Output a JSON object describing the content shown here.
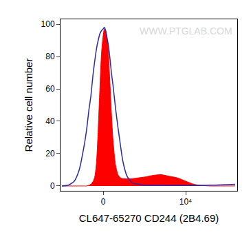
{
  "chart_data": {
    "type": "area",
    "x_label": "CL647-65270 CD244 (2B4.69)",
    "y_label": "Relative cell number",
    "watermark": "WWW.PTGLAB.COM",
    "x": [
      -5000,
      -4200,
      -3500,
      -2900,
      -2300,
      -2000,
      -1700,
      -1500,
      -1200,
      -1000,
      -800,
      -600,
      -400,
      -200,
      0,
      150,
      300,
      450,
      600,
      800,
      1000,
      1200,
      1500,
      1800,
      2100,
      2400,
      2900,
      3500,
      4200,
      5000,
      6000,
      7000,
      8000,
      9000,
      10000,
      11000,
      12000,
      13000,
      14000,
      15000,
      16000
    ],
    "series": [
      {
        "type": "area",
        "color": "#ff0000",
        "values": [
          0,
          0,
          0,
          0,
          0,
          0,
          0.5,
          1,
          3,
          6,
          15,
          35,
          60,
          82,
          93,
          97,
          96,
          92,
          85,
          66,
          45,
          28,
          13,
          7,
          5,
          4.5,
          4.5,
          4.5,
          5,
          5.5,
          6.5,
          7,
          6,
          5,
          3,
          1,
          0.3,
          0,
          0,
          0,
          0
        ]
      },
      {
        "type": "line",
        "color": "#2a2aa8",
        "values": [
          0,
          0.5,
          3,
          10,
          25,
          35,
          48,
          55,
          70,
          78,
          85,
          90,
          94,
          96,
          97,
          98,
          96,
          92,
          88,
          80,
          70,
          62,
          48,
          36,
          25,
          15,
          6,
          2,
          1,
          0.5,
          0.5,
          0.4,
          0.3,
          0.3,
          0.3,
          0.3,
          0.4,
          0.5,
          0.6,
          0.8,
          1
        ]
      }
    ],
    "xlim": [
      -5167,
      16250
    ],
    "xticks": [
      0,
      {
        "value": 10000,
        "label": "10⁴"
      }
    ],
    "ylim": [
      -3,
      103
    ],
    "yticks": [
      0,
      20,
      40,
      60,
      80,
      100
    ],
    "grid": false
  }
}
